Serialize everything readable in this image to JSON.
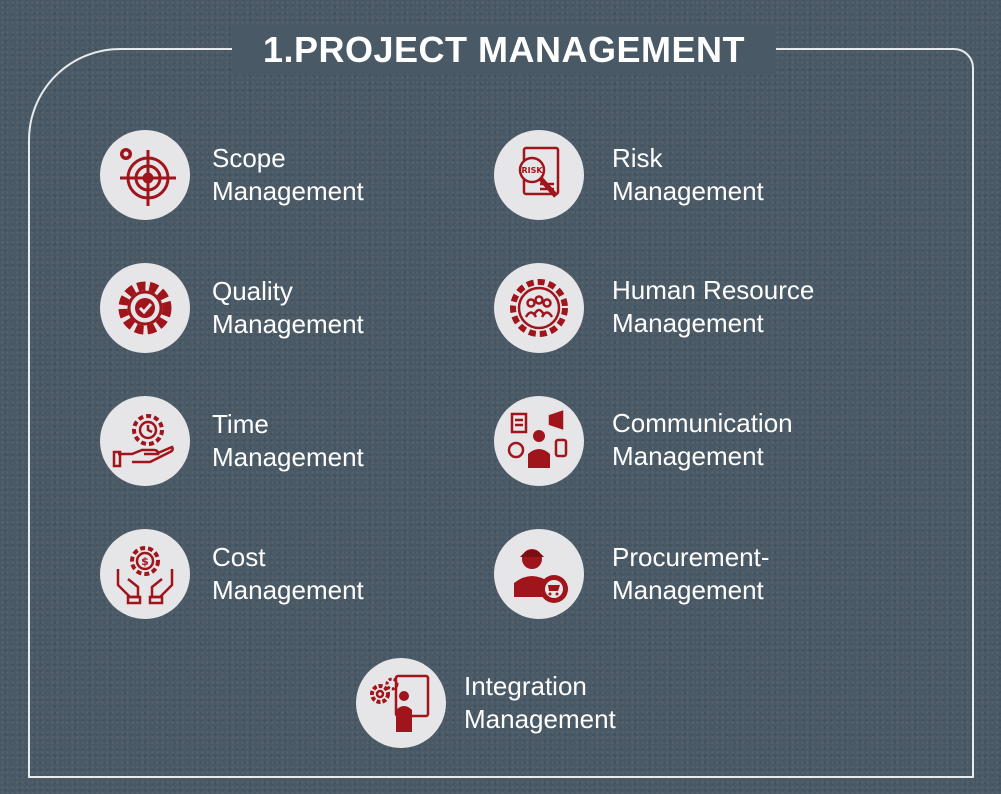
{
  "title": "1.PROJECT MANAGEMENT",
  "accent_color": "#a0141b",
  "items": [
    {
      "line1": "Scope",
      "line2": "Management",
      "icon": "target-gear-icon"
    },
    {
      "line1": "Risk",
      "line2": "Management",
      "icon": "risk-magnifier-icon"
    },
    {
      "line1": "Quality",
      "line2": "Management",
      "icon": "gear-check-icon"
    },
    {
      "line1": "Human Resource",
      "line2": "Management",
      "icon": "team-gear-icon"
    },
    {
      "line1": "Time",
      "line2": "Management",
      "icon": "clock-hand-icon"
    },
    {
      "line1": "Communication",
      "line2": "Management",
      "icon": "megaphone-person-icon"
    },
    {
      "line1": "Cost",
      "line2": "Management",
      "icon": "dollar-hands-icon"
    },
    {
      "line1": "Procurement-",
      "line2": "Management",
      "icon": "person-cart-gear-icon"
    },
    {
      "line1": "Integration",
      "line2": "Management",
      "icon": "person-gears-icon"
    }
  ]
}
